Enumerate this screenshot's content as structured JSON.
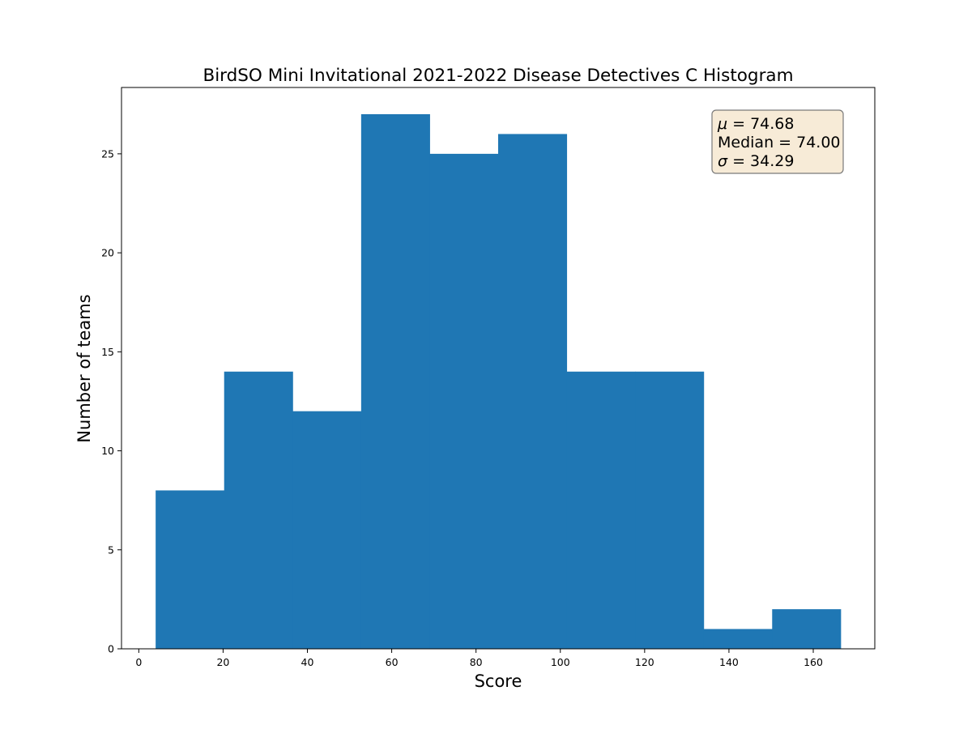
{
  "chart_data": {
    "type": "bar",
    "title": "BirdSO Mini Invitational 2021-2022 Disease Detectives C Histogram",
    "xlabel": "Score",
    "ylabel": "Number of teams",
    "bin_edges": [
      4.0,
      20.25,
      36.5,
      52.75,
      69.0,
      85.25,
      101.5,
      117.75,
      134.0,
      150.25,
      166.5
    ],
    "values": [
      8,
      14,
      12,
      27,
      25,
      26,
      14,
      14,
      1,
      2
    ],
    "xlim": [
      -4.1,
      174.6
    ],
    "ylim": [
      0,
      28.35
    ],
    "xticks": [
      0,
      20,
      40,
      60,
      80,
      100,
      120,
      140,
      160
    ],
    "yticks": [
      0,
      5,
      10,
      15,
      20,
      25
    ],
    "bar_color": "#1f77b4",
    "grid": false,
    "stats_box": {
      "position": "top-right",
      "lines": [
        {
          "symbol": "μ",
          "equals": " = ",
          "value": "74.68"
        },
        {
          "symbol": "Median",
          "equals": " = ",
          "value": "74.00"
        },
        {
          "symbol": "σ",
          "equals": " = ",
          "value": "34.29"
        }
      ],
      "background": "#f7ebd7",
      "border": "#7a7a7a"
    }
  }
}
